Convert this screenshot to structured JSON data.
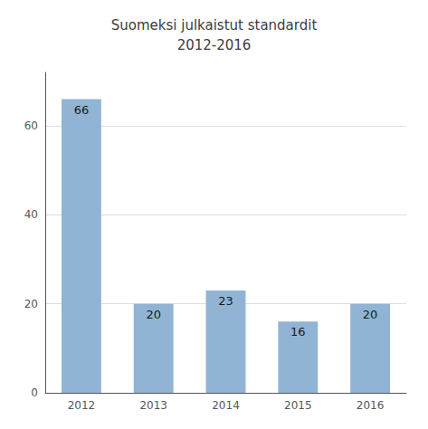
{
  "chart_data": {
    "type": "bar",
    "title": "Suomeksi julkaistut standardit\n2012-2016",
    "categories": [
      "2012",
      "2013",
      "2014",
      "2015",
      "2016"
    ],
    "values": [
      66,
      20,
      23,
      16,
      20
    ],
    "color": "#91b4d5",
    "ylim": [
      0,
      72
    ],
    "yticks": [
      0,
      20,
      40,
      60
    ],
    "grid": true,
    "data_labels": true
  }
}
